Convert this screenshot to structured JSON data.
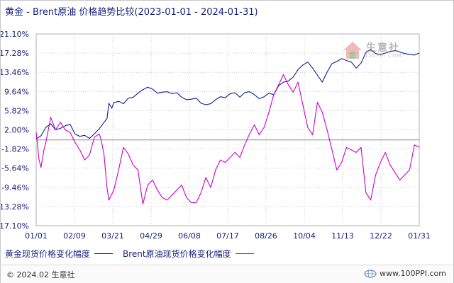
{
  "title": "黄金 - Brent原油 价格趋势比较(2023-01-01 - 2024-01-31)",
  "legend": [
    {
      "name": "黄金现货价格变化幅度",
      "color": "#0a1f8f"
    },
    {
      "name": "Brent原油现货价格变化幅度",
      "color": "#cc00cc"
    }
  ],
  "footer": {
    "copyright": "© 2024.02 生意社",
    "site": "www.100PPI.com"
  },
  "watermark": {
    "brand": "生意社",
    "site": "100PPI.COM"
  },
  "colors": {
    "zero_line": "#8a8a8a",
    "grid": "#c0c0c0",
    "axis_text": "#1a237e"
  },
  "chart_data": {
    "type": "line",
    "title": "黄金 - Brent原油 价格趋势比较(2023-01-01 - 2024-01-31)",
    "xlabel": "",
    "ylabel": "",
    "x_ticks": [
      "01/01",
      "02/09",
      "03/21",
      "04/29",
      "06/08",
      "07/17",
      "08/26",
      "10/04",
      "11/13",
      "12/22",
      "01/31"
    ],
    "y_ticks": [
      "21.10%",
      "17.28%",
      "13.46%",
      "9.64%",
      "5.82%",
      "2.00%",
      "-1.82%",
      "-5.64%",
      "-9.46%",
      "-13.28%",
      "-17.10%"
    ],
    "ylim": [
      -17.1,
      21.1
    ],
    "xlim": [
      0,
      395
    ],
    "grid": true,
    "legend_position": "bottom",
    "series": [
      {
        "name": "黄金现货价格变化幅度",
        "color": "#0a1f8f",
        "x": [
          0,
          5,
          10,
          15,
          20,
          25,
          30,
          35,
          40,
          45,
          50,
          55,
          60,
          65,
          70,
          73,
          75,
          78,
          80,
          85,
          90,
          95,
          100,
          105,
          110,
          115,
          120,
          125,
          130,
          135,
          140,
          145,
          150,
          155,
          160,
          165,
          170,
          175,
          180,
          185,
          190,
          195,
          200,
          205,
          210,
          215,
          220,
          225,
          230,
          235,
          240,
          245,
          250,
          255,
          260,
          265,
          270,
          275,
          280,
          285,
          290,
          295,
          300,
          305,
          310,
          315,
          320,
          325,
          330,
          335,
          340,
          345,
          350,
          355,
          360,
          365,
          370,
          375,
          380,
          385,
          390,
          395
        ],
        "y": [
          0.2,
          0.8,
          2.5,
          3.2,
          2.0,
          2.3,
          2.8,
          3.1,
          1.2,
          0.7,
          0.9,
          0.3,
          1.2,
          2.2,
          3.5,
          4.2,
          7.3,
          6.3,
          7.4,
          7.7,
          7.2,
          8.3,
          8.5,
          9.3,
          10.0,
          10.5,
          10.1,
          9.3,
          9.5,
          9.6,
          9.2,
          9.4,
          8.5,
          8.0,
          8.1,
          8.3,
          7.3,
          7.0,
          7.2,
          8.0,
          8.6,
          8.4,
          9.2,
          9.4,
          8.5,
          9.4,
          9.6,
          9.0,
          8.2,
          8.6,
          9.3,
          9.0,
          10.8,
          11.5,
          11.7,
          12.5,
          14.0,
          14.9,
          15.5,
          14.3,
          12.9,
          11.5,
          13.5,
          15.2,
          15.6,
          16.2,
          15.8,
          15.5,
          14.3,
          15.3,
          17.4,
          18.0,
          17.2,
          17.0,
          17.3,
          17.6,
          17.8,
          17.5,
          17.2,
          17.0,
          16.9,
          17.3
        ]
      },
      {
        "name": "Brent原油现货价格变化幅度",
        "color": "#cc00cc",
        "x": [
          0,
          3,
          5,
          8,
          10,
          15,
          20,
          25,
          30,
          35,
          40,
          45,
          50,
          55,
          60,
          65,
          67,
          70,
          73,
          75,
          80,
          85,
          90,
          95,
          100,
          105,
          110,
          115,
          120,
          125,
          130,
          135,
          140,
          145,
          150,
          155,
          160,
          165,
          170,
          175,
          180,
          185,
          190,
          195,
          200,
          205,
          210,
          215,
          220,
          225,
          230,
          235,
          240,
          245,
          250,
          255,
          260,
          265,
          270,
          275,
          280,
          285,
          290,
          295,
          300,
          305,
          310,
          315,
          320,
          325,
          330,
          335,
          340,
          345,
          350,
          355,
          360,
          365,
          370,
          375,
          380,
          385,
          390,
          395
        ],
        "y": [
          1.5,
          -4.0,
          -5.5,
          -2.0,
          -0.5,
          4.5,
          2.0,
          3.5,
          2.0,
          1.5,
          -0.5,
          -2.0,
          -4.0,
          -3.0,
          0.5,
          1.2,
          0.0,
          -3.0,
          -9.5,
          -12.0,
          -10.0,
          -6.0,
          -1.5,
          -2.8,
          -5.0,
          -6.0,
          -12.8,
          -9.0,
          -8.0,
          -10.0,
          -11.5,
          -12.0,
          -11.0,
          -10.0,
          -9.0,
          -11.5,
          -12.5,
          -12.5,
          -10.5,
          -7.5,
          -9.5,
          -6.0,
          -4.0,
          -4.5,
          -3.5,
          -2.5,
          -3.5,
          -1.0,
          1.2,
          3.0,
          1.0,
          2.5,
          5.5,
          9.0,
          11.0,
          13.0,
          11.0,
          9.5,
          11.5,
          7.0,
          2.5,
          1.0,
          7.5,
          5.5,
          2.0,
          -2.0,
          -6.0,
          -4.5,
          -1.5,
          -2.0,
          -2.5,
          -1.5,
          -10.5,
          -12.0,
          -7.0,
          -4.5,
          -2.5,
          -5.0,
          -6.5,
          -8.0,
          -7.0,
          -6.0,
          -1.0,
          -1.5
        ]
      }
    ]
  }
}
